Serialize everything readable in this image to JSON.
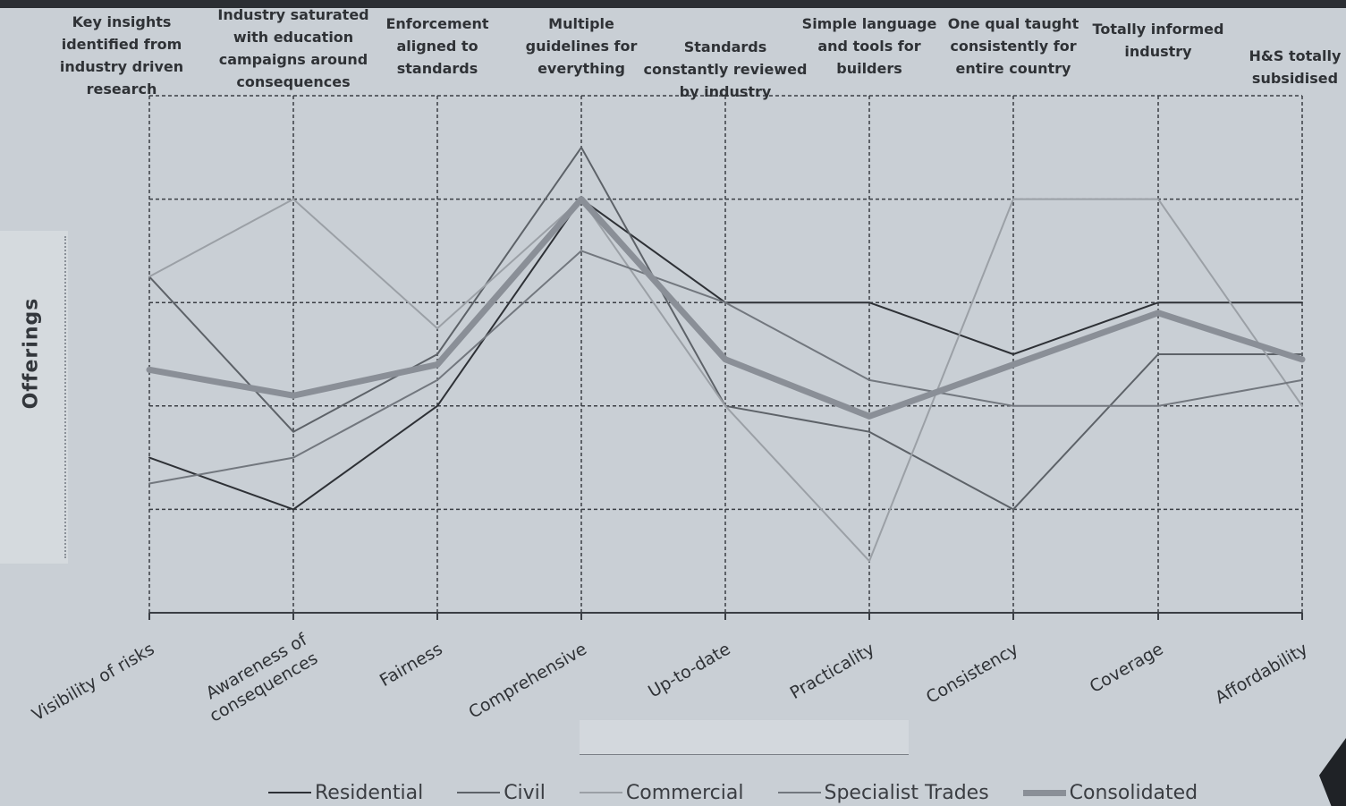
{
  "chart_data": {
    "type": "line",
    "ylabel": "Offerings",
    "xlabel": "",
    "ylim": [
      0,
      5
    ],
    "grid": true,
    "legend_position": "bottom",
    "categories": [
      "Visibility of risks",
      "Awareness of consequences",
      "Fairness",
      "Comprehensive",
      "Up-to-date",
      "Practicality",
      "Consistency",
      "Coverage",
      "Affordability"
    ],
    "offerings": [
      "Key insights identified from industry driven research",
      "Industry saturated with education campaigns around consequences",
      "Enforcement aligned to standards",
      "Multiple guidelines for everything",
      "Standards constantly reviewed by industry",
      "Simple language and tools for builders",
      "One qual taught consistently for entire country",
      "Totally informed industry",
      "H&S totally subsidised"
    ],
    "series": [
      {
        "name": "Residential",
        "color": "#2e3136",
        "width": 2,
        "values": [
          1.5,
          1.0,
          2.0,
          4.0,
          3.0,
          3.0,
          2.5,
          3.0,
          3.0
        ]
      },
      {
        "name": "Civil",
        "color": "#5d6268",
        "width": 2,
        "values": [
          3.25,
          1.75,
          2.5,
          4.5,
          2.0,
          1.75,
          1.0,
          2.5,
          2.5
        ]
      },
      {
        "name": "Commercial",
        "color": "#9ba0a6",
        "width": 2,
        "values": [
          3.25,
          4.0,
          2.75,
          4.0,
          2.0,
          0.5,
          4.0,
          4.0,
          2.0
        ]
      },
      {
        "name": "Specialist Trades",
        "color": "#72777e",
        "width": 2,
        "values": [
          1.25,
          1.5,
          2.25,
          3.5,
          3.0,
          2.25,
          2.0,
          2.0,
          2.25
        ]
      },
      {
        "name": "Consolidated",
        "color": "#8a8f97",
        "width": 7,
        "values": [
          2.35,
          2.1,
          2.4,
          4.0,
          2.45,
          1.9,
          2.4,
          2.9,
          2.45
        ]
      }
    ]
  },
  "colors": {
    "background": "#c9cfd5",
    "grid": "#3a3e44"
  }
}
